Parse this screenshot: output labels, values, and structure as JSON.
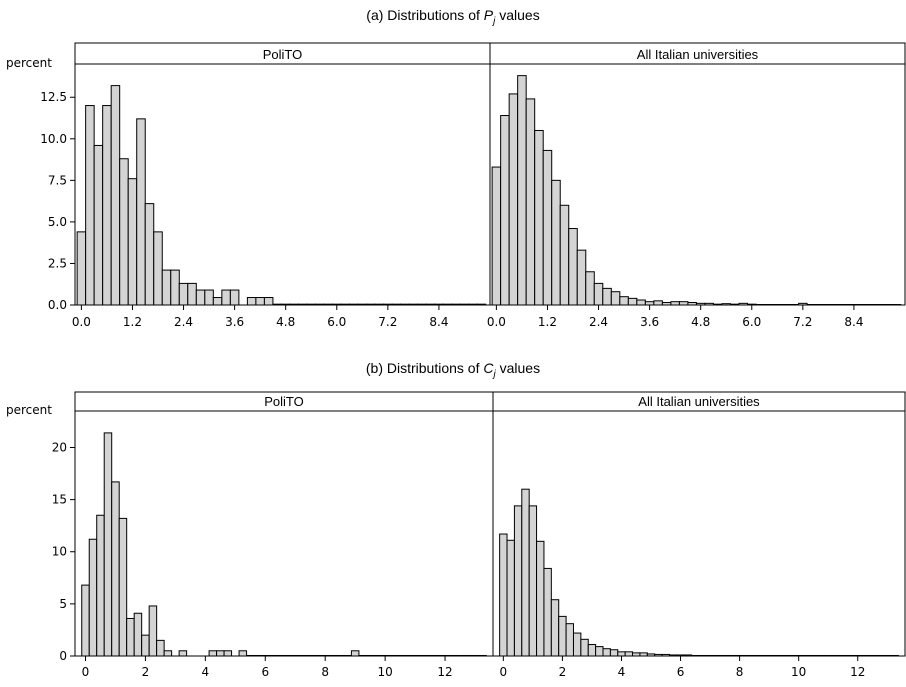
{
  "figure": {
    "ylabel": "percent",
    "colors": {
      "bar_fill": "#d4d4d4",
      "bar_stroke": "#000000",
      "background": "#ffffff"
    }
  },
  "chart_data": [
    {
      "type": "bar",
      "title_prefix": "(a) Distributions of ",
      "title_var": "P",
      "title_sub": "j",
      "title_suffix": " values",
      "ylabel": "percent",
      "ylim": [
        0,
        14.5
      ],
      "yticks": [
        "0.0",
        "2.5",
        "5.0",
        "7.5",
        "10.0",
        "12.5"
      ],
      "ytick_values": [
        0,
        2.5,
        5,
        7.5,
        10,
        12.5
      ],
      "xlim": [
        -0.15,
        9.6
      ],
      "xticks": [
        "0.0",
        "1.2",
        "2.4",
        "3.6",
        "4.8",
        "6.0",
        "7.2",
        "8.4"
      ],
      "xtick_values": [
        0,
        1.2,
        2.4,
        3.6,
        4.8,
        6.0,
        7.2,
        8.4
      ],
      "bin_width": 0.2,
      "bin_start": -0.1,
      "panels": [
        {
          "strip": "PoliTO",
          "values": [
            4.4,
            12.0,
            9.6,
            12.0,
            13.2,
            8.8,
            7.6,
            11.2,
            6.1,
            4.4,
            2.1,
            2.1,
            1.3,
            1.3,
            0.9,
            0.9,
            0.45,
            0.9,
            0.9,
            0.0,
            0.45,
            0.45,
            0.45,
            0.05,
            0.05,
            0.05,
            0.05,
            0.05,
            0.05,
            0.05,
            0.05,
            0.05,
            0.05,
            0.05,
            0.05,
            0.05,
            0.05,
            0.05,
            0.05,
            0.05,
            0.05,
            0.05,
            0.05,
            0.05,
            0.05,
            0.05,
            0.05,
            0.05
          ]
        },
        {
          "strip": "All Italian universities",
          "values": [
            8.3,
            11.4,
            12.7,
            13.8,
            12.4,
            10.5,
            9.3,
            7.5,
            6.0,
            4.6,
            3.3,
            2.0,
            1.3,
            1.0,
            0.8,
            0.5,
            0.4,
            0.3,
            0.2,
            0.25,
            0.15,
            0.2,
            0.2,
            0.15,
            0.1,
            0.1,
            0.05,
            0.08,
            0.05,
            0.1,
            0.05,
            0.03,
            0.03,
            0.03,
            0.03,
            0.03,
            0.1,
            0.03,
            0.03,
            0.03,
            0.03,
            0.03,
            0.03,
            0.03,
            0.03,
            0.03,
            0.03,
            0.03
          ]
        }
      ]
    },
    {
      "type": "bar",
      "title_prefix": "(b) Distributions of ",
      "title_var": "C",
      "title_sub": "j",
      "title_suffix": " values",
      "ylabel": "percent",
      "ylim": [
        0,
        23.5
      ],
      "yticks": [
        "0",
        "5",
        "10",
        "15",
        "20"
      ],
      "ytick_values": [
        0,
        5,
        10,
        15,
        20
      ],
      "xlim": [
        -0.35,
        13.6
      ],
      "xticks": [
        "0",
        "2",
        "4",
        "6",
        "8",
        "10",
        "12"
      ],
      "xtick_values": [
        0,
        2,
        4,
        6,
        8,
        10,
        12
      ],
      "bin_width": 0.25,
      "bin_start": -0.125,
      "panels": [
        {
          "strip": "PoliTO",
          "values": [
            6.8,
            11.2,
            13.5,
            21.4,
            16.7,
            13.2,
            3.6,
            4.1,
            2.0,
            4.8,
            1.5,
            0.5,
            0.0,
            0.5,
            0.0,
            0.0,
            0.0,
            0.5,
            0.5,
            0.5,
            0.0,
            0.5,
            0.05,
            0.05,
            0.05,
            0.05,
            0.05,
            0.05,
            0.05,
            0.05,
            0.05,
            0.05,
            0.05,
            0.05,
            0.05,
            0.05,
            0.5,
            0.05,
            0.05,
            0.05,
            0.05,
            0.05,
            0.05,
            0.05,
            0.05,
            0.05,
            0.05,
            0.05,
            0.05,
            0.05,
            0.05,
            0.05,
            0.05,
            0.05,
            0.05,
            0.05
          ]
        },
        {
          "strip": "All Italian universities",
          "values": [
            11.7,
            11.1,
            14.4,
            16.0,
            14.4,
            11.0,
            8.4,
            5.4,
            3.8,
            3.1,
            2.2,
            1.6,
            1.1,
            0.9,
            0.7,
            0.6,
            0.4,
            0.4,
            0.3,
            0.3,
            0.2,
            0.15,
            0.15,
            0.1,
            0.1,
            0.1,
            0.05,
            0.05,
            0.05,
            0.05,
            0.05,
            0.05,
            0.05,
            0.05,
            0.05,
            0.05,
            0.05,
            0.05,
            0.05,
            0.05,
            0.05,
            0.05,
            0.05,
            0.05,
            0.05,
            0.05,
            0.05,
            0.05,
            0.05,
            0.05,
            0.05,
            0.05,
            0.05,
            0.05,
            0.05,
            0.05
          ]
        }
      ]
    }
  ]
}
